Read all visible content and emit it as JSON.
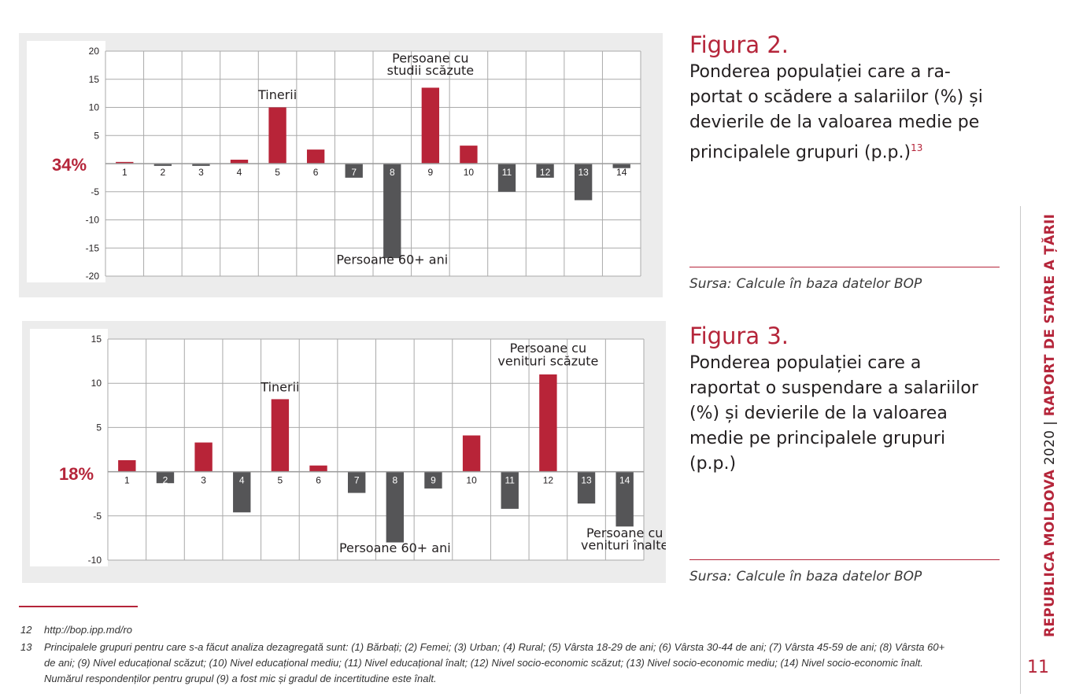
{
  "colors": {
    "accent": "#b5253a",
    "positive_bar": "#b82438",
    "negative_bar": "#555557",
    "grid": "#aaaaaa",
    "panel": "#ececec"
  },
  "figure2": {
    "title": "Figura 2.",
    "caption_lines": [
      "Ponderea populației care a ra-",
      "portat o scădere a salariilor (%) și",
      "devierile de la valoarea medie pe",
      "principalele grupuri (p.p.)"
    ],
    "caption_sup": "13",
    "source_label": "Sursa:",
    "source_text": "Calcule în baza datelor BOP",
    "baseline_label": "34%"
  },
  "figure3": {
    "title": "Figura 3.",
    "caption_lines": [
      "Ponderea populației care a",
      "raportat o suspendare a salariilor",
      "(%) și devierile de la valoarea",
      "medie pe principalele grupuri",
      "(p.p.)"
    ],
    "source_label": "Sursa:",
    "source_text": "Calcule în baza datelor BOP",
    "baseline_label": "18%"
  },
  "chart_data": [
    {
      "type": "bar",
      "categories": [
        "1",
        "2",
        "3",
        "4",
        "5",
        "6",
        "7",
        "8",
        "9",
        "10",
        "11",
        "12",
        "13",
        "14"
      ],
      "values": [
        0.3,
        -0.4,
        -0.4,
        0.7,
        10,
        2.5,
        -2.5,
        -16.8,
        13.5,
        3.2,
        -5,
        -2.5,
        -6.5,
        -0.8
      ],
      "ylim": [
        -20,
        20
      ],
      "yticks": [
        20,
        15,
        10,
        5,
        0,
        -5,
        -10,
        -15,
        -20
      ],
      "ytick_labels": [
        "20",
        "15",
        "10",
        "5",
        "",
        "-5",
        "-10",
        "-15",
        "-20"
      ],
      "annotations": [
        {
          "text": "Tinerii",
          "category": "5",
          "y": 11.5
        },
        {
          "text": "Persoane cu",
          "category": "9",
          "y": 18.0
        },
        {
          "text": "studii scăzute",
          "category": "9",
          "y": 15.8
        },
        {
          "text": "Persoane 60+ ani",
          "category": "8",
          "y": -17.8
        }
      ],
      "grid": true
    },
    {
      "type": "bar",
      "categories": [
        "1",
        "2",
        "3",
        "4",
        "5",
        "6",
        "7",
        "8",
        "9",
        "10",
        "11",
        "12",
        "13",
        "14"
      ],
      "values": [
        1.3,
        -1.3,
        3.3,
        -4.6,
        8.2,
        0.7,
        -2.4,
        -8,
        -1.9,
        4.1,
        -4.2,
        11,
        -3.6,
        -6.2
      ],
      "ylim": [
        -10,
        15
      ],
      "yticks": [
        15,
        10,
        5,
        0,
        -5,
        -10
      ],
      "ytick_labels": [
        "15",
        "10",
        "5",
        "",
        "-5",
        "-10"
      ],
      "annotations": [
        {
          "text": "Tinerii",
          "category": "5",
          "y": 9.1
        },
        {
          "text": "Persoane cu",
          "category": "12",
          "y": 13.5
        },
        {
          "text": "venituri scăzute",
          "category": "12",
          "y": 12.0
        },
        {
          "text": "Persoane 60+ ani",
          "category": "8",
          "y": -9.1
        },
        {
          "text": "Persoane cu",
          "category": "14",
          "y": -7.4
        },
        {
          "text": "venituri înalte",
          "category": "14",
          "y": -8.8
        }
      ],
      "grid": true
    }
  ],
  "footnotes": [
    {
      "num": "12",
      "lines": [
        "http://bop.ipp.md/ro"
      ]
    },
    {
      "num": "13",
      "lines": [
        "Principalele grupuri pentru care s-a făcut analiza dezagregată sunt: (1) Bărbați; (2) Femei; (3) Urban; (4) Rural; (5) Vârsta 18-29 de ani; (6) Vârsta 30-44 de ani; (7) Vârsta 45-59 de ani; (8) Vârsta 60+",
        "de ani; (9) Nivel educațional scăzut; (10) Nivel educațional mediu; (11) Nivel educațional înalt; (12) Nivel socio-economic scăzut; (13) Nivel socio-economic mediu; (14) Nivel    socio-economic înalt.",
        "Numărul respondenților pentru grupul (9) a fost mic și gradul de incertitudine este înalt."
      ]
    }
  ],
  "side": {
    "strong": "REPUBLICA MOLDOVA",
    "year": "2020",
    "separator": "|",
    "report": "RAPORT DE STARE A ȚĂRII"
  },
  "page_number": "11"
}
